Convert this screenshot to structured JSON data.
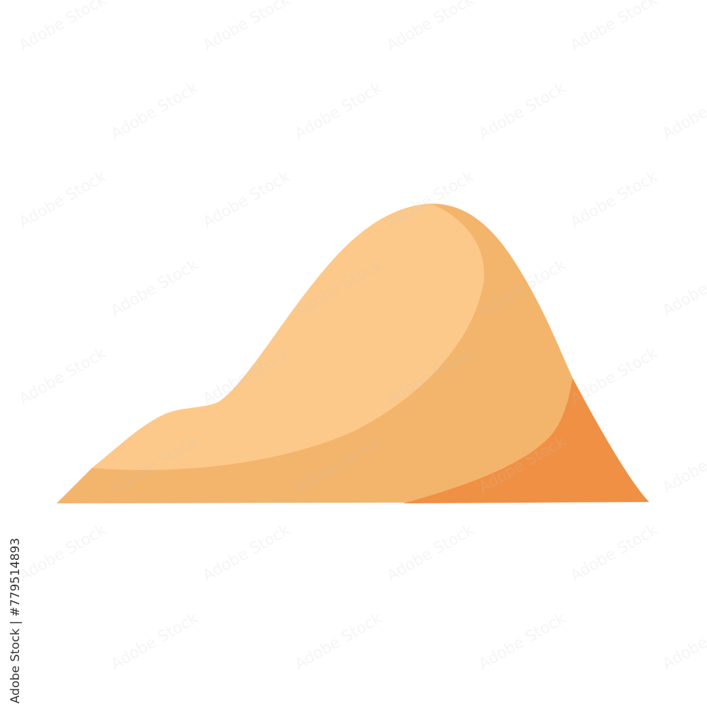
{
  "watermark": {
    "text": "Adobe Stock",
    "stock_id": "Adobe Stock | #779514893"
  },
  "illustration": {
    "subject": "sand-dune",
    "colors": {
      "highlight": "#FCC98A",
      "mid": "#F3B46C",
      "shadow": "#F09044",
      "background": "#FFFFFF"
    }
  }
}
